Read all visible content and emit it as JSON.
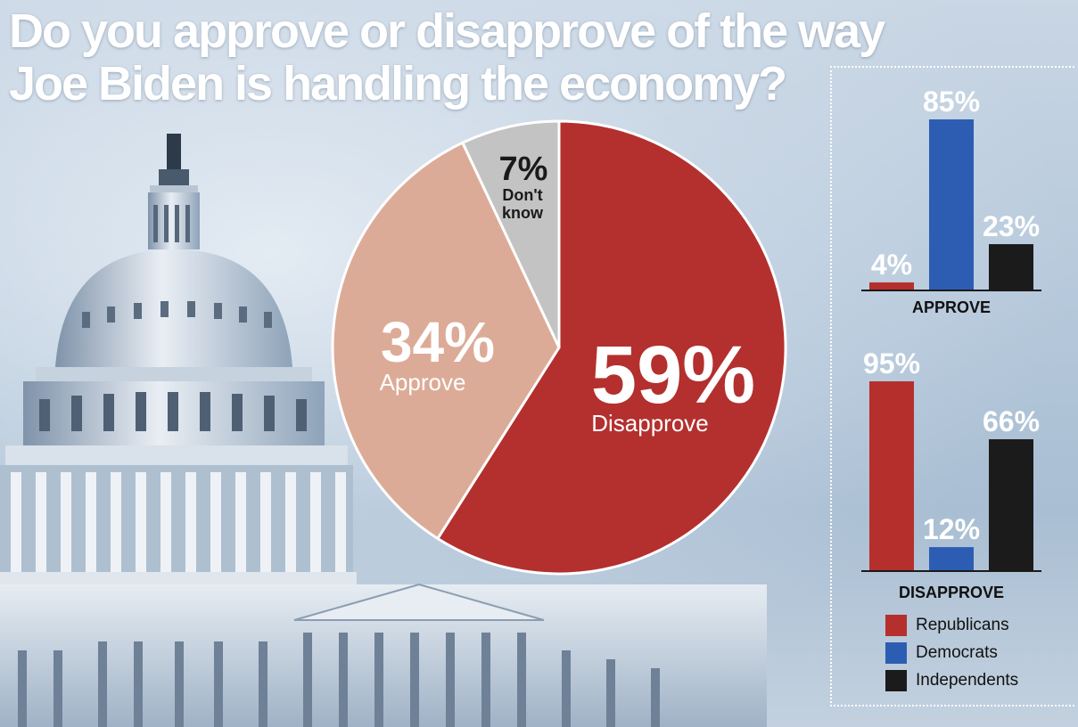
{
  "title_line1": "Do you approve or disapprove of the way",
  "title_line2": "Joe Biden is handling the economy?",
  "colors": {
    "republicans": "#b5302d",
    "democrats": "#2d5db3",
    "independents": "#1b1b1b",
    "approve_slice": "#dcab97",
    "dont_know_slice": "#c3c3c3",
    "disapprove_slice": "#b3302e"
  },
  "chart_data": [
    {
      "type": "pie",
      "slices": [
        {
          "label": "Disapprove",
          "value": 59,
          "value_label": "59%"
        },
        {
          "label": "Approve",
          "value": 34,
          "value_label": "34%"
        },
        {
          "label": "Don't know",
          "value": 7,
          "value_label": "7%"
        }
      ]
    },
    {
      "type": "bar",
      "xlabel": "APPROVE",
      "categories": [
        "Republicans",
        "Democrats",
        "Independents"
      ],
      "values": [
        4,
        85,
        23
      ],
      "value_labels": [
        "4%",
        "85%",
        "23%"
      ]
    },
    {
      "type": "bar",
      "xlabel": "DISAPPROVE",
      "categories": [
        "Republicans",
        "Democrats",
        "Independents"
      ],
      "values": [
        95,
        12,
        66
      ],
      "value_labels": [
        "95%",
        "12%",
        "66%"
      ]
    }
  ],
  "legend": [
    {
      "label": "Republicans",
      "color": "#b5302d"
    },
    {
      "label": "Democrats",
      "color": "#2d5db3"
    },
    {
      "label": "Independents",
      "color": "#1b1b1b"
    }
  ]
}
